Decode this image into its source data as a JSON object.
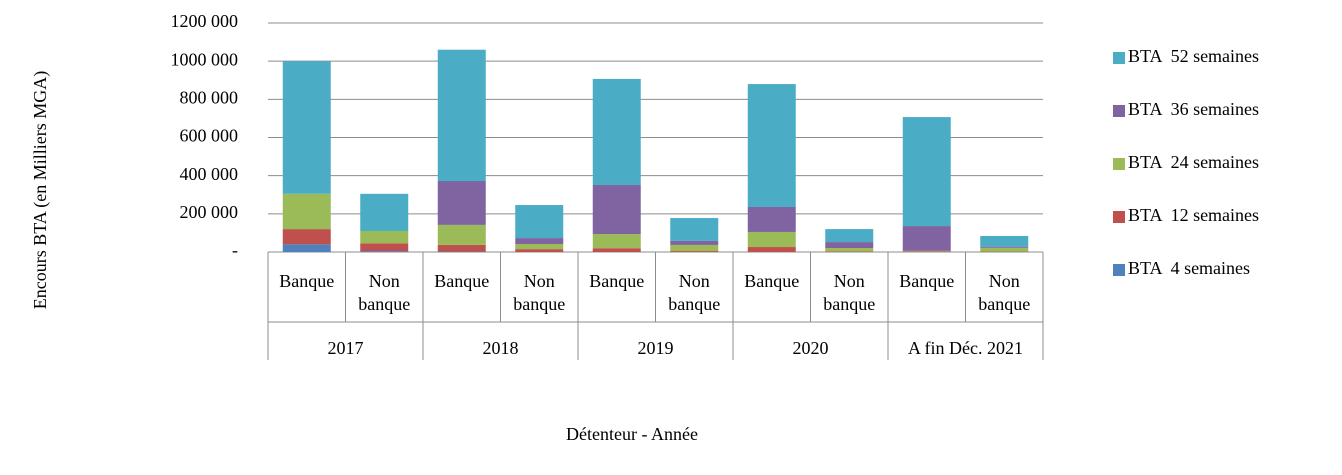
{
  "chart_data": {
    "type": "stacked_bar",
    "y_axis_label": "Encours BTA (en Milliers MGA)",
    "x_axis_label": "Détenteur - Année",
    "categories": [
      "Banque",
      "Non banque",
      "Banque",
      "Non banque",
      "Banque",
      "Non banque",
      "Banque",
      "Non banque",
      "Banque",
      "Non banque"
    ],
    "groups": [
      "2017",
      "2018",
      "2019",
      "2020",
      "A fin Déc. 2021"
    ],
    "series": [
      {
        "name": "BTA  4 semaines",
        "color": "#4f81bd",
        "values": [
          40000,
          5000,
          2000,
          0,
          0,
          0,
          0,
          0,
          0,
          0
        ]
      },
      {
        "name": "BTA  12 semaines",
        "color": "#c0504d",
        "values": [
          80000,
          40000,
          35000,
          15000,
          20000,
          5000,
          26000,
          3000,
          3000,
          2000
        ]
      },
      {
        "name": "BTA  24 semaines",
        "color": "#9bbb59",
        "values": [
          185000,
          65000,
          105000,
          27000,
          74000,
          32000,
          79000,
          18000,
          3000,
          20000
        ]
      },
      {
        "name": "BTA  36 semaines",
        "color": "#8064a2",
        "values": [
          0,
          0,
          230000,
          31000,
          257000,
          21000,
          131000,
          31000,
          130000,
          6000
        ]
      },
      {
        "name": "BTA  52 semaines",
        "color": "#4bacc6",
        "values": [
          695000,
          195000,
          688000,
          173000,
          556000,
          120000,
          644000,
          68000,
          571000,
          56000
        ]
      }
    ],
    "ylim": [
      0,
      1200000
    ],
    "yticks": [
      {
        "value": 0,
        "label": "-"
      },
      {
        "value": 200000,
        "label": "200 000"
      },
      {
        "value": 400000,
        "label": "400 000"
      },
      {
        "value": 600000,
        "label": "600 000"
      },
      {
        "value": 800000,
        "label": "800 000"
      },
      {
        "value": 1000000,
        "label": "1000 000"
      },
      {
        "value": 1200000,
        "label": "1200 000"
      }
    ],
    "grid": true,
    "legend": "right"
  }
}
